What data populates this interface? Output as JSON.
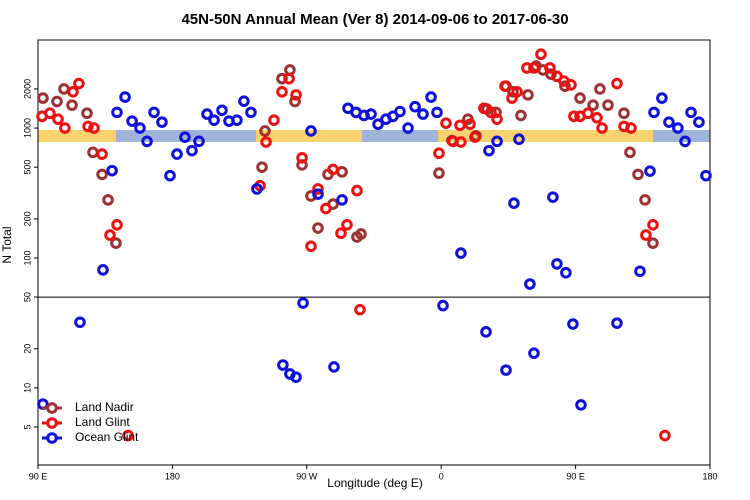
{
  "chart_data": {
    "type": "scatter",
    "title": "45N-50N Annual Mean (Ver 8)   2014-09-06 to 2017-06-30",
    "xlabel": "Longitude (deg E)",
    "ylabel": "N Total",
    "xlim": [
      90,
      540
    ],
    "ylim": [
      2.55,
      4760
    ],
    "log_y": true,
    "hline": 50,
    "legend": "bottomleft",
    "xticks": [
      {
        "value": 90,
        "label": "90 E"
      },
      180,
      {
        "value": 270,
        "label": "90 W"
      },
      {
        "value": 360,
        "label": "0"
      },
      {
        "value": 450,
        "label": "90 E"
      },
      {
        "value": 540,
        "label": "180"
      }
    ],
    "yticks": [
      5,
      10,
      20,
      50,
      100,
      200,
      500,
      1000,
      2000
    ],
    "series": [
      {
        "name": "Land Nadir",
        "color": "#9c3232",
        "x": [
          93.3,
          102.7,
          107.4,
          112.8,
          122.8,
          126.8,
          132.9,
          136.9,
          142.2,
          240,
          242,
          253.4,
          258.7,
          262.1,
          266.8,
          272.8,
          277.5,
          284.2,
          287.6,
          293.6,
          303.6,
          306.3,
          358.5,
          367.2,
          377.9,
          383.3,
          390.6,
          396.7,
          403.4,
          408.1,
          413.4,
          418.1,
          423.5,
          428.2,
          433.5,
          442.9,
          453,
          461.7,
          466.3,
          471.7,
          482.4,
          486.4,
          491.8,
          496.5,
          501.8
        ],
        "values": [
          1700,
          1600,
          2000,
          1500,
          1300,
          650,
          440,
          280,
          130,
          500,
          950,
          2400,
          2800,
          1600,
          520,
          300,
          170,
          440,
          260,
          460,
          145,
          153,
          450,
          800,
          1170,
          870,
          1400,
          1320,
          2100,
          1900,
          1250,
          1800,
          3000,
          2800,
          2600,
          2100,
          1700,
          1500,
          2000,
          1500,
          1300,
          650,
          440,
          280,
          130
        ]
      },
      {
        "name": "Land Glint",
        "color": "#ee1111",
        "x": [
          92.7,
          98,
          103.4,
          108,
          113.4,
          117.4,
          123.5,
          127.5,
          132.9,
          138.2,
          142.9,
          150.3,
          238.7,
          242.7,
          248,
          253.4,
          258.1,
          262.8,
          266.8,
          272.8,
          277.5,
          282.8,
          287.6,
          292.9,
          296.9,
          303.6,
          305.6,
          358.5,
          363.2,
          367.9,
          373.2,
          372.6,
          379.3,
          382.6,
          388.6,
          393.3,
          397.4,
          402.7,
          407.4,
          410.8,
          417.4,
          422.1,
          426.8,
          432.8,
          437.5,
          442.2,
          446.9,
          448.9,
          453,
          458.3,
          464.3,
          467.7,
          477.7,
          482.4,
          487.1,
          497.1,
          501.8,
          509.8
        ],
        "values": [
          1230,
          1300,
          1170,
          1000,
          1900,
          2200,
          1030,
          1000,
          630,
          150,
          180,
          4.3,
          360,
          780,
          1150,
          1900,
          2400,
          1800,
          590,
          123,
          340,
          240,
          480,
          155,
          180,
          330,
          40,
          640,
          1090,
          790,
          780,
          1050,
          1070,
          850,
          1420,
          1320,
          1170,
          2100,
          1700,
          1900,
          2900,
          2900,
          3700,
          2900,
          2500,
          2300,
          2150,
          1230,
          1230,
          1300,
          1200,
          1000,
          2200,
          1030,
          1000,
          150,
          180,
          4.3
        ]
      },
      {
        "name": "Ocean Glint",
        "color": "#1010dd",
        "x": [
          93.3,
          118.1,
          133.5,
          139.6,
          142.9,
          148.3,
          153,
          158.3,
          163,
          167.7,
          173,
          178.4,
          183.1,
          188.4,
          193.1,
          197.8,
          203.2,
          207.9,
          213.2,
          217.9,
          223.2,
          227.9,
          232.6,
          236.6,
          254,
          258.7,
          262.8,
          267.5,
          272.8,
          277.5,
          288.2,
          293.6,
          297.6,
          303,
          308.3,
          313,
          317.7,
          323,
          327.7,
          332.4,
          337.8,
          342.5,
          347.8,
          353.2,
          357.2,
          361.2,
          373.2,
          390,
          392,
          397.4,
          403.4,
          408.7,
          412.1,
          419.4,
          422.1,
          434.8,
          437.5,
          443.5,
          448.2,
          453.6,
          477.7,
          493.1,
          499.8,
          502.5,
          507.8,
          512.5,
          518.5,
          523.3,
          527.3,
          532.6,
          537.3
        ],
        "values": [
          7.5,
          32,
          81,
          470,
          1320,
          1730,
          1130,
          1000,
          790,
          1320,
          1110,
          430,
          630,
          850,
          670,
          790,
          1280,
          1150,
          1370,
          1130,
          1150,
          1610,
          1320,
          340,
          15,
          12.8,
          12.1,
          45,
          950,
          310,
          14.5,
          280,
          1420,
          1320,
          1250,
          1280,
          1070,
          1170,
          1230,
          1340,
          1000,
          1460,
          1280,
          1730,
          1320,
          43,
          109,
          27,
          670,
          790,
          13.7,
          264,
          820,
          63,
          18.5,
          294,
          90,
          77,
          31,
          7.4,
          31.5,
          79,
          466,
          1320,
          1700,
          1110,
          1000,
          790,
          1320,
          1110,
          430
        ]
      }
    ]
  }
}
